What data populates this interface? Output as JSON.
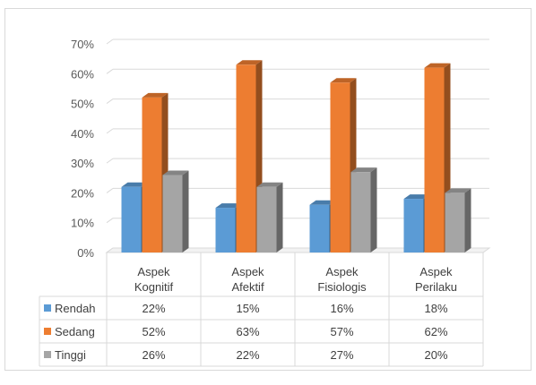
{
  "chart_data": {
    "type": "bar",
    "title": "",
    "xlabel": "",
    "ylabel": "",
    "categories": [
      [
        "Aspek",
        "Kognitif"
      ],
      [
        "Aspek",
        "Afektif"
      ],
      [
        "Aspek",
        "Fisiologis"
      ],
      [
        "Aspek",
        "Perilaku"
      ]
    ],
    "series": [
      {
        "name": "Rendah",
        "values": [
          22,
          15,
          16,
          18
        ],
        "labels": [
          "22%",
          "15%",
          "16%",
          "18%"
        ],
        "color": "#5b9bd5"
      },
      {
        "name": "Sedang",
        "values": [
          52,
          63,
          57,
          62
        ],
        "labels": [
          "52%",
          "63%",
          "57%",
          "62%"
        ],
        "color": "#ed7d31"
      },
      {
        "name": "Tinggi",
        "values": [
          26,
          22,
          27,
          20
        ],
        "labels": [
          "26%",
          "22%",
          "27%",
          "20%"
        ],
        "color": "#a5a5a5"
      }
    ],
    "ylim": [
      0,
      70
    ],
    "yticks": [
      "0%",
      "10%",
      "20%",
      "30%",
      "40%",
      "50%",
      "60%",
      "70%"
    ],
    "grid": true,
    "style": "3d-clustered-column",
    "data_table": true,
    "legend": "data-table-keys"
  }
}
